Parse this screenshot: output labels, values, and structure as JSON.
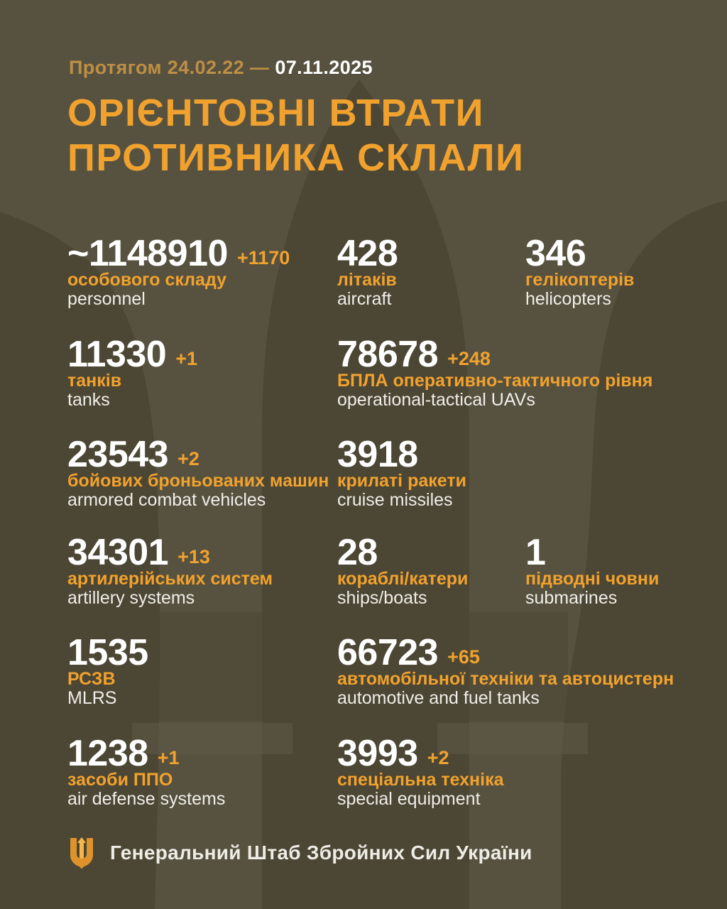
{
  "colors": {
    "background": "#575240",
    "shape_dark": "#4C4634",
    "shape_light": "#5F5A47",
    "accent": "#F1A22E",
    "accent_muted": "#BD8F45",
    "number_white": "#FFFFFF"
  },
  "header": {
    "period_prefix": "Протягом 24.02.22 —",
    "period_date": "07.11.2025",
    "title_line1": "ОРІЄНТОВНІ ВТРАТИ",
    "title_line2": "ПРОТИВНИКА СКЛАЛИ"
  },
  "stats": [
    {
      "id": "personnel",
      "value": "~1148910",
      "delta": "+1170",
      "label_uk": "особового складу",
      "label_en": "personnel",
      "col": 1,
      "row": 1
    },
    {
      "id": "aircraft",
      "value": "428",
      "delta": "",
      "label_uk": "літаків",
      "label_en": "aircraft",
      "col": 2,
      "row": 1
    },
    {
      "id": "helicopters",
      "value": "346",
      "delta": "",
      "label_uk": "гелікоптерів",
      "label_en": "helicopters",
      "col": 3,
      "row": 1
    },
    {
      "id": "tanks",
      "value": "11330",
      "delta": "+1",
      "label_uk": "танків",
      "label_en": "tanks",
      "col": 1,
      "row": 2
    },
    {
      "id": "uavs",
      "value": "78678",
      "delta": "+248",
      "label_uk": "БПЛА оперативно-тактичного рівня",
      "label_en": "operational-tactical UAVs",
      "col": 2,
      "row": 2
    },
    {
      "id": "armored-vehicles",
      "value": "23543",
      "delta": "+2",
      "label_uk": "бойових броньованих машин",
      "label_en": "armored combat vehicles",
      "col": 1,
      "row": 3
    },
    {
      "id": "cruise-missiles",
      "value": "3918",
      "delta": "",
      "label_uk": "крилаті ракети",
      "label_en": "cruise missiles",
      "col": 2,
      "row": 3
    },
    {
      "id": "artillery",
      "value": "34301",
      "delta": "+13",
      "label_uk": "артилерійських систем",
      "label_en": "artillery systems",
      "col": 1,
      "row": 4
    },
    {
      "id": "ships",
      "value": "28",
      "delta": "",
      "label_uk": "кораблі/катери",
      "label_en": "ships/boats",
      "col": 2,
      "row": 4
    },
    {
      "id": "submarines",
      "value": "1",
      "delta": "",
      "label_uk": "підводні човни",
      "label_en": "submarines",
      "col": 3,
      "row": 4
    },
    {
      "id": "mlrs",
      "value": "1535",
      "delta": "",
      "label_uk": "РСЗВ",
      "label_en": "MLRS",
      "col": 1,
      "row": 5
    },
    {
      "id": "automotive",
      "value": "66723",
      "delta": "+65",
      "label_uk": "автомобільної техніки та автоцистерн",
      "label_en": "automotive and fuel tanks",
      "col": 2,
      "row": 5
    },
    {
      "id": "air-defense",
      "value": "1238",
      "delta": "+1",
      "label_uk": "засоби ППО",
      "label_en": "air defense systems",
      "col": 1,
      "row": 6
    },
    {
      "id": "special-equipment",
      "value": "3993",
      "delta": "+2",
      "label_uk": "спеціальна техніка",
      "label_en": "special equipment",
      "col": 2,
      "row": 6
    }
  ],
  "footer": {
    "org": "Генеральний Штаб Збройних Сил України"
  },
  "chart_data": {
    "type": "table",
    "title": "ОРІЄНТОВНІ ВТРАТИ ПРОТИВНИКА СКЛАЛИ",
    "subtitle": "Протягом 24.02.22 — 07.11.2025",
    "source": "Генеральний Штаб Збройних Сил України",
    "categories": [
      "personnel",
      "aircraft",
      "helicopters",
      "tanks",
      "operational-tactical UAVs",
      "armored combat vehicles",
      "cruise missiles",
      "artillery systems",
      "ships/boats",
      "submarines",
      "MLRS",
      "automotive and fuel tanks",
      "air defense systems",
      "special equipment"
    ],
    "values": [
      1148910,
      428,
      346,
      11330,
      78678,
      23543,
      3918,
      34301,
      28,
      1,
      1535,
      66723,
      1238,
      3993
    ],
    "daily_change": [
      1170,
      0,
      0,
      1,
      248,
      2,
      0,
      13,
      0,
      0,
      0,
      65,
      1,
      2
    ]
  }
}
